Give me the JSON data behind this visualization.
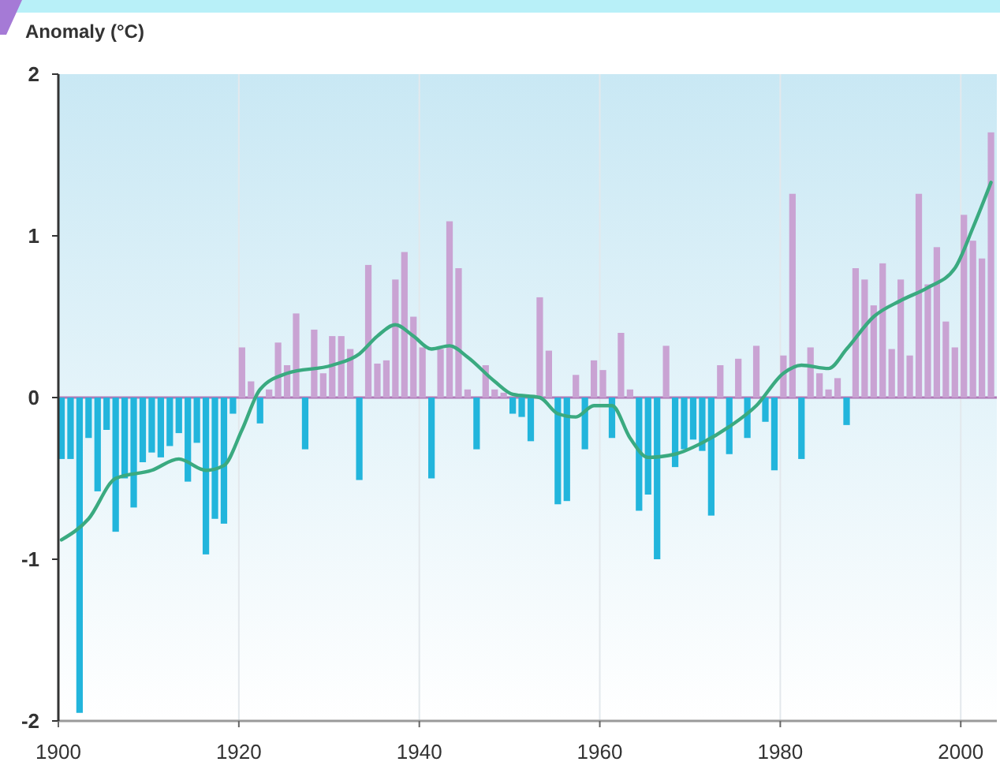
{
  "chart_data": {
    "type": "bar",
    "ylabel": "Anomaly (°C)",
    "xlim": [
      1900,
      2004
    ],
    "xticks": [
      1900,
      1920,
      1940,
      1960,
      1980,
      2000
    ],
    "ylim": [
      -2,
      2
    ],
    "yticks": [
      -2,
      -1,
      0,
      1,
      2
    ],
    "grid": "x",
    "ref_lines": [
      {
        "axis": "y",
        "value": 0,
        "color": "#b07ab8"
      }
    ],
    "series": [
      {
        "x": [
          1900,
          1901,
          1902,
          1903,
          1904,
          1905,
          1906,
          1907,
          1908,
          1909,
          1910,
          1911,
          1912,
          1913,
          1914,
          1915,
          1916,
          1917,
          1918,
          1919,
          1920,
          1921,
          1922,
          1923,
          1924,
          1925,
          1926,
          1927,
          1928,
          1929,
          1930,
          1931,
          1932,
          1933,
          1934,
          1935,
          1936,
          1937,
          1938,
          1939,
          1940,
          1941,
          1942,
          1943,
          1944,
          1945,
          1946,
          1947,
          1948,
          1949,
          1950,
          1951,
          1952,
          1953,
          1954,
          1955,
          1956,
          1957,
          1958,
          1959,
          1960,
          1961,
          1962,
          1963,
          1964,
          1965,
          1966,
          1967,
          1968,
          1969,
          1970,
          1971,
          1972,
          1973,
          1974,
          1975,
          1976,
          1977,
          1978,
          1979,
          1980,
          1981,
          1982,
          1983,
          1984,
          1985,
          1986,
          1987,
          1988,
          1989,
          1990,
          1991,
          1992,
          1993,
          1994,
          1995,
          1996,
          1997,
          1998,
          1999,
          2000,
          2001,
          2002,
          2003
        ],
        "values": [
          -0.38,
          -0.38,
          -1.95,
          -0.25,
          -0.58,
          -0.2,
          -0.83,
          -0.5,
          -0.68,
          -0.4,
          -0.34,
          -0.37,
          -0.3,
          -0.22,
          -0.52,
          -0.28,
          -0.97,
          -0.75,
          -0.78,
          -0.1,
          0.31,
          0.1,
          -0.16,
          0.05,
          0.34,
          0.2,
          0.52,
          -0.32,
          0.42,
          0.15,
          0.38,
          0.38,
          0.3,
          -0.51,
          0.82,
          0.21,
          0.23,
          0.73,
          0.9,
          0.5,
          0.31,
          -0.5,
          0.3,
          1.09,
          0.8,
          0.05,
          -0.32,
          0.2,
          0.05,
          0.03,
          -0.1,
          -0.12,
          -0.27,
          0.62,
          0.29,
          -0.66,
          -0.64,
          0.14,
          -0.32,
          0.23,
          0.17,
          -0.25,
          0.4,
          0.05,
          -0.7,
          -0.6,
          -1.0,
          0.32,
          -0.43,
          -0.32,
          -0.26,
          -0.33,
          -0.73,
          0.2,
          -0.35,
          0.24,
          -0.25,
          0.32,
          -0.15,
          -0.45,
          0.26,
          1.26,
          -0.38,
          0.31,
          0.15,
          0.05,
          0.12,
          -0.17,
          0.8,
          0.73,
          0.57,
          0.83,
          0.3,
          0.73,
          0.26,
          1.26,
          0.7,
          0.93,
          0.47,
          0.31,
          1.13,
          0.97,
          0.86,
          1.64
        ],
        "colors": [
          "#22b5dc",
          "#22b5dc",
          "#22b5dc",
          "#22b5dc",
          "#22b5dc",
          "#22b5dc",
          "#22b5dc",
          "#22b5dc",
          "#22b5dc",
          "#22b5dc",
          "#22b5dc",
          "#22b5dc",
          "#22b5dc",
          "#22b5dc",
          "#22b5dc",
          "#22b5dc",
          "#22b5dc",
          "#22b5dc",
          "#22b5dc",
          "#22b5dc",
          "#c9a3d3",
          "#c9a3d3",
          "#22b5dc",
          "#c9a3d3",
          "#c9a3d3",
          "#c9a3d3",
          "#c9a3d3",
          "#22b5dc",
          "#c9a3d3",
          "#c9a3d3",
          "#c9a3d3",
          "#c9a3d3",
          "#c9a3d3",
          "#22b5dc",
          "#c9a3d3",
          "#c9a3d3",
          "#c9a3d3",
          "#c9a3d3",
          "#c9a3d3",
          "#c9a3d3",
          "#c9a3d3",
          "#22b5dc",
          "#c9a3d3",
          "#c9a3d3",
          "#c9a3d3",
          "#c9a3d3",
          "#22b5dc",
          "#c9a3d3",
          "#c9a3d3",
          "#c9a3d3",
          "#22b5dc",
          "#22b5dc",
          "#22b5dc",
          "#c9a3d3",
          "#c9a3d3",
          "#22b5dc",
          "#22b5dc",
          "#c9a3d3",
          "#22b5dc",
          "#c9a3d3",
          "#c9a3d3",
          "#22b5dc",
          "#c9a3d3",
          "#c9a3d3",
          "#22b5dc",
          "#22b5dc",
          "#22b5dc",
          "#c9a3d3",
          "#22b5dc",
          "#22b5dc",
          "#22b5dc",
          "#22b5dc",
          "#22b5dc",
          "#c9a3d3",
          "#22b5dc",
          "#c9a3d3",
          "#22b5dc",
          "#c9a3d3",
          "#22b5dc",
          "#22b5dc",
          "#c9a3d3",
          "#c9a3d3",
          "#22b5dc",
          "#c9a3d3",
          "#c9a3d3",
          "#c9a3d3",
          "#c9a3d3",
          "#22b5dc",
          "#c9a3d3",
          "#c9a3d3",
          "#c9a3d3",
          "#c9a3d3",
          "#c9a3d3",
          "#c9a3d3",
          "#c9a3d3",
          "#c9a3d3",
          "#c9a3d3",
          "#c9a3d3",
          "#c9a3d3",
          "#c9a3d3",
          "#c9a3d3",
          "#c9a3d3",
          "#c9a3d3",
          "#c9a3d3"
        ]
      },
      {
        "type": "line",
        "color": "#3aaa80",
        "x": [
          1900,
          1903,
          1906,
          1910,
          1913,
          1916,
          1918,
          1920,
          1922,
          1925,
          1930,
          1933,
          1935,
          1937,
          1939,
          1941,
          1943,
          1945,
          1948,
          1950,
          1953,
          1955,
          1957,
          1959,
          1961,
          1963,
          1965,
          1968,
          1971,
          1974,
          1977,
          1980,
          1982,
          1985,
          1987,
          1990,
          1993,
          1996,
          1999,
          2001,
          2003
        ],
        "values": [
          -0.88,
          -0.75,
          -0.5,
          -0.45,
          -0.38,
          -0.45,
          -0.42,
          -0.2,
          0.05,
          0.15,
          0.2,
          0.27,
          0.38,
          0.45,
          0.38,
          0.3,
          0.32,
          0.25,
          0.1,
          0.02,
          0.0,
          -0.1,
          -0.12,
          -0.05,
          -0.05,
          -0.25,
          -0.37,
          -0.35,
          -0.28,
          -0.18,
          -0.05,
          0.15,
          0.2,
          0.18,
          0.3,
          0.5,
          0.6,
          0.68,
          0.8,
          1.05,
          1.33
        ]
      }
    ]
  }
}
